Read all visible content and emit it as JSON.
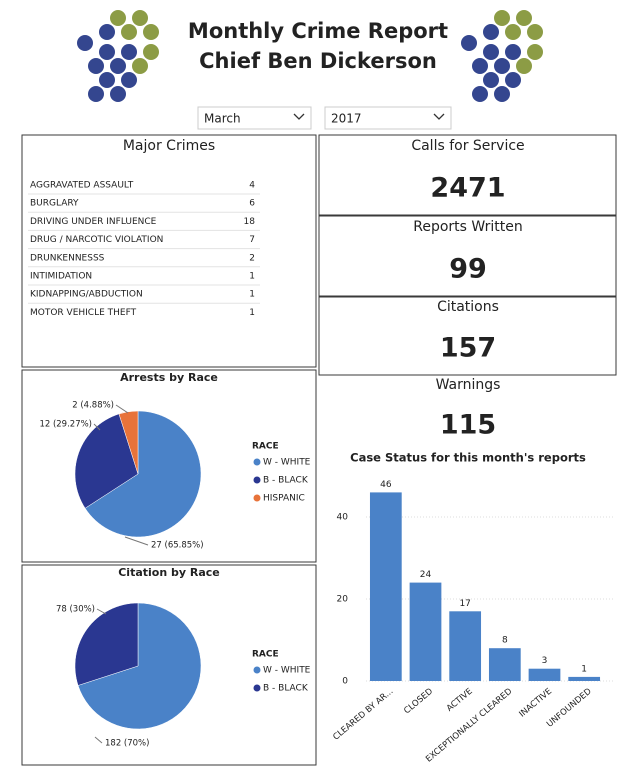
{
  "header": {
    "title": "Monthly Crime Report",
    "subtitle": "Chief Ben Dickerson"
  },
  "filters": {
    "month": "March",
    "year": "2017"
  },
  "major_crimes": {
    "title": "Major Crimes",
    "rows": [
      [
        "AGGRAVATED ASSAULT",
        4
      ],
      [
        "BURGLARY",
        6
      ],
      [
        "DRIVING UNDER INFLUENCE",
        18
      ],
      [
        "DRUG / NARCOTIC VIOLATION",
        7
      ],
      [
        "DRUNKENNESSS",
        2
      ],
      [
        "INTIMIDATION",
        1
      ],
      [
        "KIDNAPPING/ABDUCTION",
        1
      ],
      [
        "MOTOR VEHICLE THEFT",
        1
      ]
    ]
  },
  "kpis": [
    {
      "label": "Calls for Service",
      "value": 2471
    },
    {
      "label": "Reports Written",
      "value": 99
    },
    {
      "label": "Citations",
      "value": 157
    },
    {
      "label": "Warnings",
      "value": 115
    }
  ],
  "chart_data": [
    {
      "type": "pie",
      "title": "Arrests by Race",
      "legend_title": "RACE",
      "categories": [
        "W - WHITE",
        "B - BLACK",
        "HISPANIC"
      ],
      "values": [
        27,
        12,
        2
      ],
      "value_labels": [
        "27 (65.85%)",
        "12 (29.27%)",
        "2 (4.88%)"
      ],
      "colors": [
        "#4a82c8",
        "#2a3791",
        "#e8733a"
      ]
    },
    {
      "type": "pie",
      "title": "Citation by Race",
      "legend_title": "RACE",
      "categories": [
        "W - WHITE",
        "B - BLACK"
      ],
      "values": [
        182,
        78
      ],
      "value_labels": [
        "182 (70%)",
        "78 (30%)"
      ],
      "colors": [
        "#4a82c8",
        "#2a3791"
      ]
    },
    {
      "type": "bar",
      "title": "Case Status for this month's reports",
      "categories": [
        "CLEARED BY AR...",
        "CLOSED",
        "ACTIVE",
        "EXCEPTIONALLY CLEARED",
        "INACTIVE",
        "UNFOUNDED"
      ],
      "values": [
        46,
        24,
        17,
        8,
        3,
        1
      ],
      "color": "#4a82c8",
      "ylim": [
        0,
        50
      ],
      "yticks": [
        0,
        20,
        40
      ],
      "grid": true
    }
  ]
}
